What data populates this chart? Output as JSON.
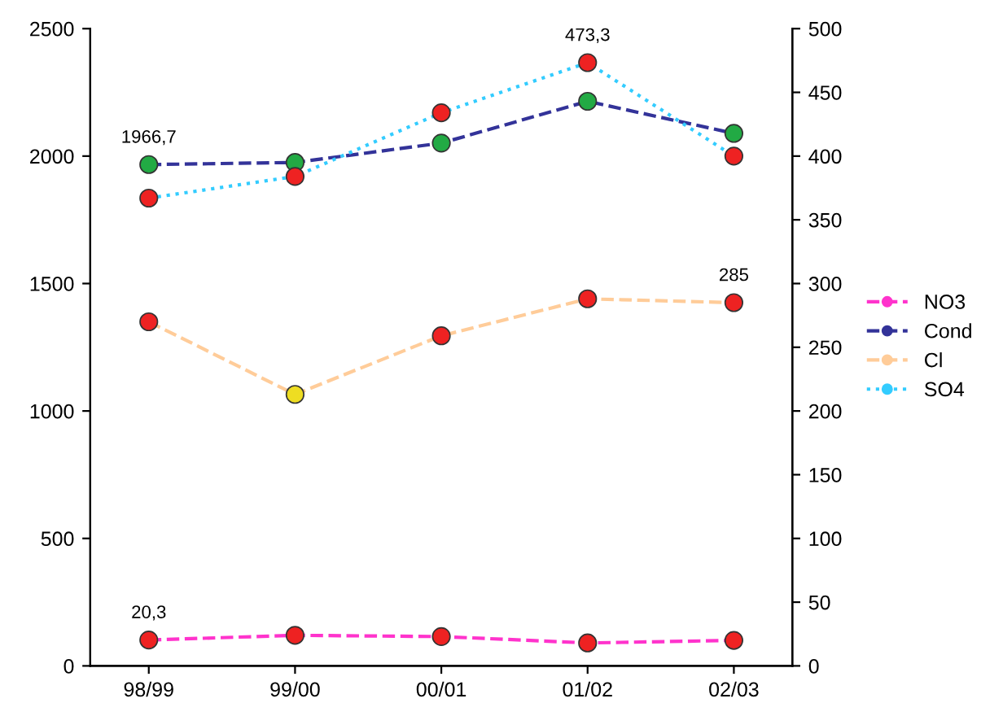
{
  "chart_data": {
    "type": "line",
    "categories": [
      "98/99",
      "99/00",
      "00/01",
      "01/02",
      "02/03"
    ],
    "series": [
      {
        "name": "NO3",
        "color": "#ff33cc",
        "colors": [
          "#ee2222",
          "#ee2222",
          "#ee2222",
          "#ee2222",
          "#ee2222"
        ],
        "axis": "y2",
        "line_style": "dashed",
        "values": [
          20.3,
          24,
          23,
          18,
          20
        ],
        "value_labels": [
          "20,3",
          null,
          null,
          null,
          null
        ]
      },
      {
        "name": "Cond",
        "color": "#333399",
        "colors": [
          "#22aa44",
          "#22aa44",
          "#22aa44",
          "#22aa44",
          "#22aa44"
        ],
        "axis": "y",
        "line_style": "dashed",
        "values": [
          1966.7,
          1975,
          2051,
          2215,
          2089
        ],
        "value_labels": [
          "1966,7",
          null,
          null,
          null,
          null
        ]
      },
      {
        "name": "Cl",
        "color": "#ffcc99",
        "colors": [
          "#ee2222",
          "#eedd22",
          "#ee2222",
          "#ee2222",
          "#ee2222"
        ],
        "axis": "y2",
        "line_style": "dashed",
        "values": [
          270,
          213,
          259,
          288,
          285
        ],
        "value_labels": [
          null,
          null,
          null,
          null,
          "285"
        ]
      },
      {
        "name": "SO4",
        "color": "#33ccff",
        "colors": [
          "#ee2222",
          "#ee2222",
          "#ee2222",
          "#ee2222",
          "#ee2222"
        ],
        "axis": "y2",
        "line_style": "dotted",
        "values": [
          367,
          384,
          434,
          473.3,
          400
        ],
        "value_labels": [
          null,
          null,
          null,
          "473,3",
          null
        ]
      }
    ],
    "ylim": [
      0,
      2500
    ],
    "yticks": [
      0,
      500,
      1000,
      1500,
      2000,
      2500
    ],
    "y2lim": [
      0,
      500
    ],
    "y2ticks": [
      0,
      50,
      100,
      150,
      200,
      250,
      300,
      350,
      400,
      450,
      500
    ],
    "marker": "circle",
    "grid": false,
    "legend": "right"
  }
}
